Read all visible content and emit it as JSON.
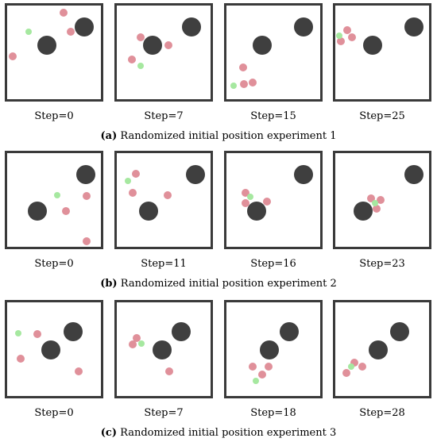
{
  "rows": [
    {
      "caption_letter": "(a)",
      "caption_text": "Randomized initial position experiment 1",
      "panels": [
        {
          "step": "Step=0",
          "obstacles": [
            [
              0.42,
              0.42
            ],
            [
              0.82,
              0.23
            ]
          ],
          "red": [
            [
              0.6,
              0.08
            ],
            [
              0.68,
              0.28
            ],
            [
              0.06,
              0.54
            ]
          ],
          "green": [
            [
              0.23,
              0.28
            ]
          ]
        },
        {
          "step": "Step=7",
          "obstacles": [
            [
              0.38,
              0.42
            ],
            [
              0.8,
              0.23
            ]
          ],
          "red": [
            [
              0.25,
              0.34
            ],
            [
              0.55,
              0.42
            ],
            [
              0.16,
              0.58
            ]
          ],
          "green": [
            [
              0.25,
              0.64
            ]
          ]
        },
        {
          "step": "Step=15",
          "obstacles": [
            [
              0.38,
              0.42
            ],
            [
              0.82,
              0.23
            ]
          ],
          "red": [
            [
              0.18,
              0.66
            ],
            [
              0.19,
              0.84
            ],
            [
              0.28,
              0.82
            ]
          ],
          "green": [
            [
              0.08,
              0.86
            ]
          ]
        },
        {
          "step": "Step=25",
          "obstacles": [
            [
              0.4,
              0.42
            ],
            [
              0.84,
              0.23
            ]
          ],
          "red": [
            [
              0.13,
              0.26
            ],
            [
              0.18,
              0.34
            ],
            [
              0.06,
              0.38
            ]
          ],
          "green": [
            [
              0.04,
              0.32
            ]
          ]
        }
      ]
    },
    {
      "caption_letter": "(b)",
      "caption_text": "Randomized initial position experiment 2",
      "panels": [
        {
          "step": "Step=0",
          "obstacles": [
            [
              0.32,
              0.62
            ],
            [
              0.84,
              0.23
            ]
          ],
          "red": [
            [
              0.85,
              0.46
            ],
            [
              0.63,
              0.62
            ],
            [
              0.85,
              0.94
            ]
          ],
          "green": [
            [
              0.53,
              0.45
            ]
          ]
        },
        {
          "step": "Step=11",
          "obstacles": [
            [
              0.34,
              0.62
            ],
            [
              0.84,
              0.23
            ]
          ],
          "red": [
            [
              0.2,
              0.22
            ],
            [
              0.17,
              0.42
            ],
            [
              0.54,
              0.45
            ]
          ],
          "green": [
            [
              0.12,
              0.3
            ]
          ]
        },
        {
          "step": "Step=16",
          "obstacles": [
            [
              0.32,
              0.62
            ],
            [
              0.82,
              0.23
            ]
          ],
          "red": [
            [
              0.2,
              0.42
            ],
            [
              0.2,
              0.53
            ],
            [
              0.43,
              0.52
            ]
          ],
          "green": [
            [
              0.25,
              0.47
            ]
          ]
        },
        {
          "step": "Step=23",
          "obstacles": [
            [
              0.3,
              0.62
            ],
            [
              0.84,
              0.23
            ]
          ],
          "red": [
            [
              0.38,
              0.48
            ],
            [
              0.48,
              0.5
            ],
            [
              0.44,
              0.59
            ]
          ],
          "green": [
            [
              0.42,
              0.53
            ]
          ]
        }
      ]
    },
    {
      "caption_letter": "(c)",
      "caption_text": "Randomized initial position experiment 3",
      "panels": [
        {
          "step": "Step=0",
          "obstacles": [
            [
              0.47,
              0.51
            ],
            [
              0.7,
              0.31
            ]
          ],
          "red": [
            [
              0.32,
              0.34
            ],
            [
              0.14,
              0.6
            ],
            [
              0.76,
              0.74
            ]
          ],
          "green": [
            [
              0.12,
              0.33
            ]
          ]
        },
        {
          "step": "Step=7",
          "obstacles": [
            [
              0.48,
              0.51
            ],
            [
              0.69,
              0.31
            ]
          ],
          "red": [
            [
              0.21,
              0.38
            ],
            [
              0.17,
              0.45
            ],
            [
              0.56,
              0.74
            ]
          ],
          "green": [
            [
              0.26,
              0.44
            ]
          ]
        },
        {
          "step": "Step=18",
          "obstacles": [
            [
              0.46,
              0.51
            ],
            [
              0.67,
              0.31
            ]
          ],
          "red": [
            [
              0.28,
              0.69
            ],
            [
              0.45,
              0.69
            ],
            [
              0.38,
              0.77
            ]
          ],
          "green": [
            [
              0.31,
              0.84
            ]
          ]
        },
        {
          "step": "Step=28",
          "obstacles": [
            [
              0.46,
              0.51
            ],
            [
              0.69,
              0.31
            ]
          ],
          "red": [
            [
              0.2,
              0.64
            ],
            [
              0.29,
              0.69
            ],
            [
              0.12,
              0.75
            ]
          ],
          "green": [
            [
              0.17,
              0.69
            ]
          ]
        }
      ]
    }
  ],
  "colors": {
    "obstacle": "#3f3f3f",
    "agent_red": "#e0909a",
    "agent_green": "#a6e8a0",
    "frame": "#3a3a3a"
  }
}
